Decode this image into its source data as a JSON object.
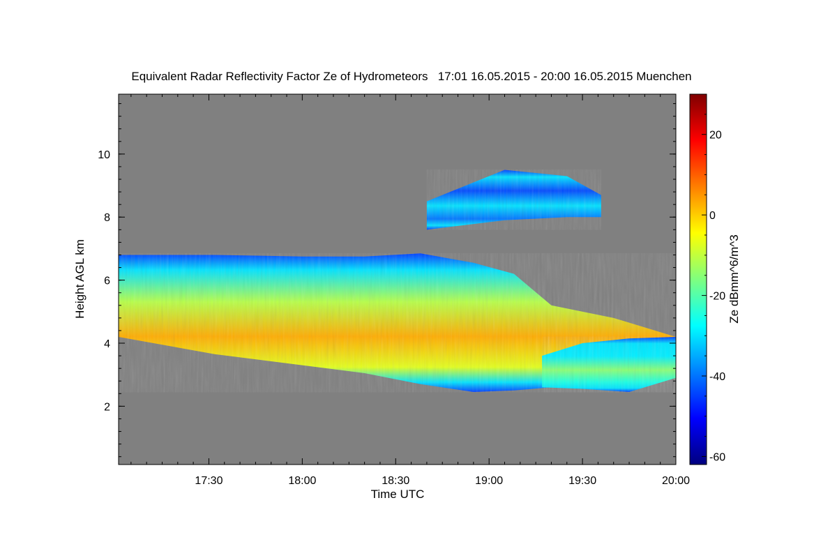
{
  "chart_data": {
    "type": "heatmap",
    "title": "Equivalent Radar Reflectivity Factor Ze of Hydrometeors   17:01 16.05.2015 - 20:00 16.05.2015 Muenchen",
    "xlabel": "Time UTC",
    "ylabel": "Height AGL km",
    "colorbar_label": "Ze dBmm^6/m^3",
    "x_tick_labels": [
      "17:30",
      "18:00",
      "18:30",
      "19:00",
      "19:30",
      "20:00"
    ],
    "x_tick_values_min": [
      1050,
      1080,
      1110,
      1140,
      1170,
      1200
    ],
    "xlim_min": [
      1021,
      1200
    ],
    "y_tick_labels": [
      "2",
      "4",
      "6",
      "8",
      "10"
    ],
    "y_tick_values": [
      2,
      4,
      6,
      8,
      10
    ],
    "ylim": [
      0.15,
      11.9
    ],
    "colorbar_tick_labels": [
      "20",
      "0",
      "-20",
      "-40",
      "-60"
    ],
    "colorbar_tick_values": [
      20,
      0,
      -20,
      -40,
      -60
    ],
    "zlim": [
      -62,
      30
    ],
    "background_color": "#808080",
    "colormap": [
      "#00007f",
      "#0000ff",
      "#007fff",
      "#00ffff",
      "#7fff7f",
      "#ffff00",
      "#ff7f00",
      "#ff0000",
      "#7f0000"
    ],
    "features": [
      {
        "name": "main-cloud-layer",
        "t": [
          1021,
          1052,
          1080,
          1100,
          1118,
          1135,
          1148,
          1160,
          1180,
          1200
        ],
        "top_km": [
          6.8,
          6.8,
          6.75,
          6.75,
          6.85,
          6.55,
          6.2,
          5.2,
          4.8,
          4.2
        ],
        "base_km": [
          4.2,
          3.65,
          3.3,
          3.05,
          2.7,
          2.45,
          2.5,
          2.6,
          2.55,
          2.9
        ],
        "peak_dbz": 3
      },
      {
        "name": "lower-layer",
        "t": [
          1157,
          1170,
          1185,
          1200
        ],
        "top_km": [
          3.6,
          4.0,
          4.15,
          4.2
        ],
        "base_km": [
          2.6,
          2.55,
          2.45,
          2.9
        ],
        "peak_dbz": -15
      },
      {
        "name": "upper-cloud-cells",
        "t": [
          1120,
          1145,
          1165,
          1176
        ],
        "top_km": [
          8.5,
          9.5,
          9.3,
          8.7
        ],
        "base_km": [
          7.6,
          7.9,
          8.0,
          8.0
        ],
        "peak_dbz": -30
      }
    ]
  }
}
